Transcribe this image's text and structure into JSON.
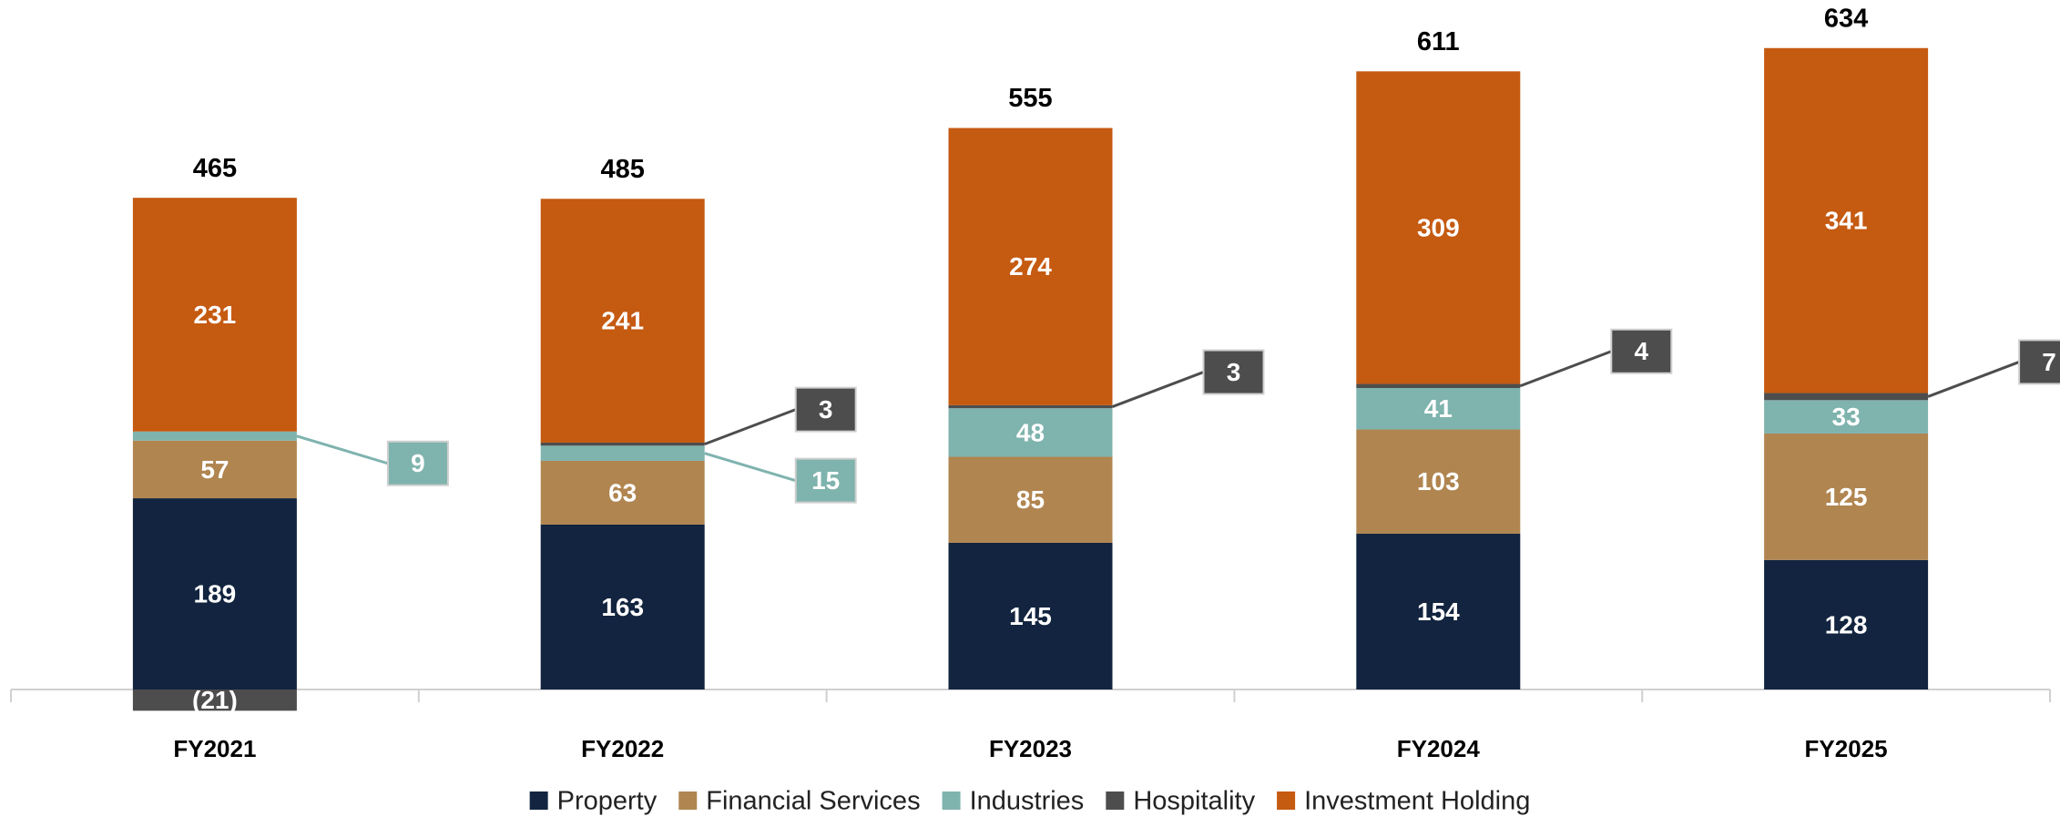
{
  "chart_data": {
    "type": "stacked_bar",
    "categories": [
      "FY2021",
      "FY2022",
      "FY2023",
      "FY2024",
      "FY2025"
    ],
    "series": [
      {
        "name": "Property",
        "color": "#12243f",
        "values": [
          189,
          163,
          145,
          154,
          128
        ]
      },
      {
        "name": "Financial Services",
        "color": "#b08550",
        "values": [
          57,
          63,
          85,
          103,
          125
        ]
      },
      {
        "name": "Industries",
        "color": "#7fb3ae",
        "values": [
          9,
          15,
          48,
          41,
          33
        ]
      },
      {
        "name": "Hospitality",
        "color": "#4d4d4d",
        "values": [
          -21,
          3,
          3,
          4,
          7
        ],
        "value_labels": [
          "(21)",
          "3",
          "3",
          "4",
          "7"
        ]
      },
      {
        "name": "Investment Holding",
        "color": "#c55a11",
        "values": [
          231,
          241,
          274,
          309,
          341
        ]
      }
    ],
    "totals": [
      465,
      485,
      555,
      611,
      634
    ],
    "ylim": [
      0,
      650
    ],
    "legend": "bottom"
  }
}
